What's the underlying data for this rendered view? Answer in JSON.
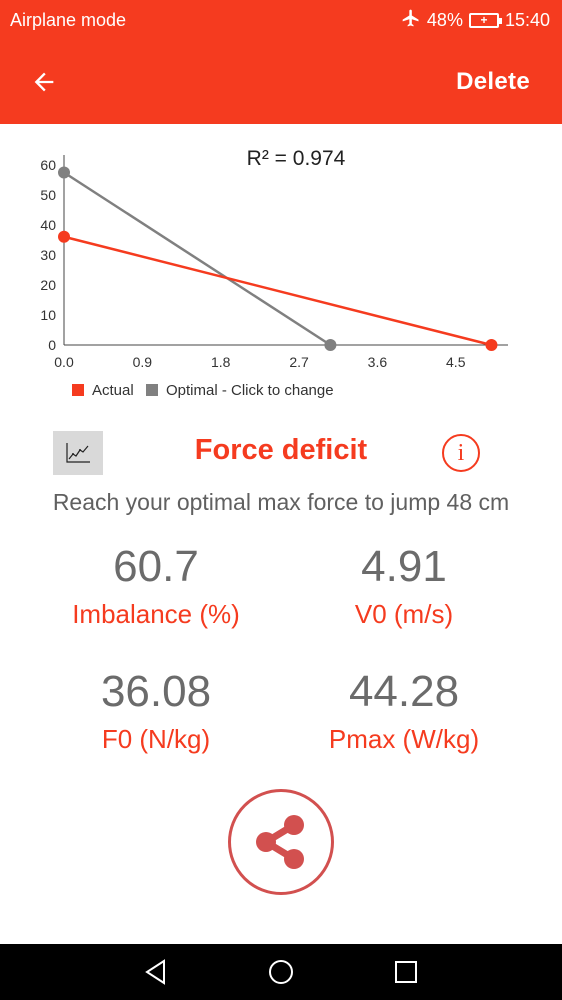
{
  "status_bar": {
    "mode": "Airplane mode",
    "battery_percent": "48%",
    "time": "15:40",
    "icons": [
      "airplane-icon",
      "battery-icon"
    ]
  },
  "app_bar": {
    "back_icon": "arrow-left-icon",
    "delete_label": "Delete"
  },
  "chart_data": {
    "type": "line",
    "title": "R² = 0.974",
    "xlim": [
      0,
      5.1
    ],
    "ylim": [
      0,
      60
    ],
    "x_ticks": [
      "0.0",
      "0.9",
      "1.8",
      "2.7",
      "3.6",
      "4.5"
    ],
    "x_tick_values": [
      0,
      0.9,
      1.8,
      2.7,
      3.6,
      4.5
    ],
    "y_ticks": [
      "0",
      "10",
      "20",
      "30",
      "40",
      "50",
      "60"
    ],
    "y_tick_values": [
      0,
      10,
      20,
      30,
      40,
      50,
      60
    ],
    "legend_placement": "bottom-left",
    "series": [
      {
        "name": "Actual",
        "color": "#f53b1f",
        "x": [
          0,
          4.91
        ],
        "y": [
          36.08,
          0
        ]
      },
      {
        "name": "Optimal - Click to change",
        "color": "#808080",
        "x": [
          0,
          3.06
        ],
        "y": [
          57.5,
          0
        ]
      }
    ]
  },
  "deficit": {
    "toggle_icon": "line-chart-icon",
    "title": "Force deficit",
    "info_icon": "info-icon",
    "info_glyph": "i",
    "message": "Reach your optimal max force to jump 48 cm"
  },
  "metrics": {
    "imbalance": {
      "value": "60.7",
      "label": "Imbalance (%)"
    },
    "v0": {
      "value": "4.91",
      "label": "V0 (m/s)"
    },
    "f0": {
      "value": "36.08",
      "label": "F0 (N/kg)"
    },
    "pmax": {
      "value": "44.28",
      "label": "Pmax (W/kg)"
    }
  },
  "share": {
    "icon": "share-icon"
  },
  "nav_bar": {
    "icons": [
      "back-triangle-icon",
      "home-circle-icon",
      "recents-square-icon"
    ]
  },
  "colors": {
    "accent": "#f53b1f",
    "value_gray": "#6b6b6b",
    "optimal_gray": "#808080"
  }
}
